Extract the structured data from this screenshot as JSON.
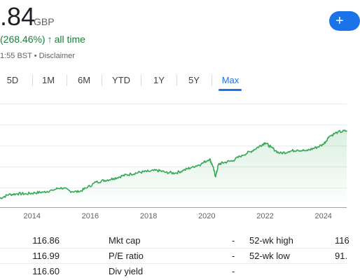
{
  "quote": {
    "price": ".84",
    "currency": "GBP",
    "change_text": "(268.46%)",
    "change_arrow": "↑",
    "change_period": "all time",
    "timestamp": "1:55 BST • Disclaimer",
    "follow_icon": "plus-icon",
    "follow_label": "+"
  },
  "tabs": {
    "items": [
      {
        "label": "5D"
      },
      {
        "label": "1M"
      },
      {
        "label": "6M"
      },
      {
        "label": "YTD"
      },
      {
        "label": "1Y"
      },
      {
        "label": "5Y"
      },
      {
        "label": "Max"
      }
    ],
    "active": "Max"
  },
  "colors": {
    "line": "#34a853",
    "fill_top": "#34a853",
    "gridline": "#e8eaed",
    "accent": "#1a73e8",
    "positive": "#188038"
  },
  "chart_data": {
    "type": "area",
    "x_tick_labels": [
      "2014",
      "2016",
      "2018",
      "2020",
      "2022",
      "2024"
    ],
    "x_range": [
      2012.9,
      2024.8
    ],
    "y_range": [
      0,
      100
    ],
    "y_axis_labels_visible": false,
    "grid": true,
    "series": [
      {
        "x": [
          2012.9,
          2013.2,
          2013.5,
          2013.8,
          2014.1,
          2014.4,
          2014.7,
          2015.0,
          2015.3,
          2015.6,
          2015.9,
          2016.2,
          2016.5,
          2016.8,
          2017.1,
          2017.4,
          2017.7,
          2018.0,
          2018.3,
          2018.6,
          2018.9,
          2019.2,
          2019.5,
          2019.8,
          2020.1,
          2020.2,
          2020.3,
          2020.4,
          2020.6,
          2020.9,
          2021.2,
          2021.5,
          2021.8,
          2022.0,
          2022.2,
          2022.5,
          2022.8,
          2023.1,
          2023.4,
          2023.7,
          2024.0,
          2024.2,
          2024.5,
          2024.8
        ],
        "y": [
          10,
          14,
          15,
          15,
          16,
          17,
          19,
          22,
          18,
          17,
          22,
          28,
          30,
          32,
          35,
          37,
          39,
          40,
          41,
          39,
          38,
          41,
          45,
          48,
          54,
          46,
          34,
          48,
          50,
          52,
          58,
          62,
          68,
          72,
          67,
          60,
          62,
          64,
          63,
          66,
          70,
          79,
          84,
          85
        ]
      }
    ]
  },
  "stats": {
    "rows": [
      {
        "left_value": "116.86",
        "mid_label": "Mkt cap",
        "mid_value": "-",
        "right_label": "52-wk high",
        "right_value": "116"
      },
      {
        "left_value": "116.99",
        "mid_label": "P/E ratio",
        "mid_value": "-",
        "right_label": "52-wk low",
        "right_value": "91."
      },
      {
        "left_value": "116.60",
        "mid_label": "Div yield",
        "mid_value": "-",
        "right_label": "",
        "right_value": ""
      }
    ]
  }
}
